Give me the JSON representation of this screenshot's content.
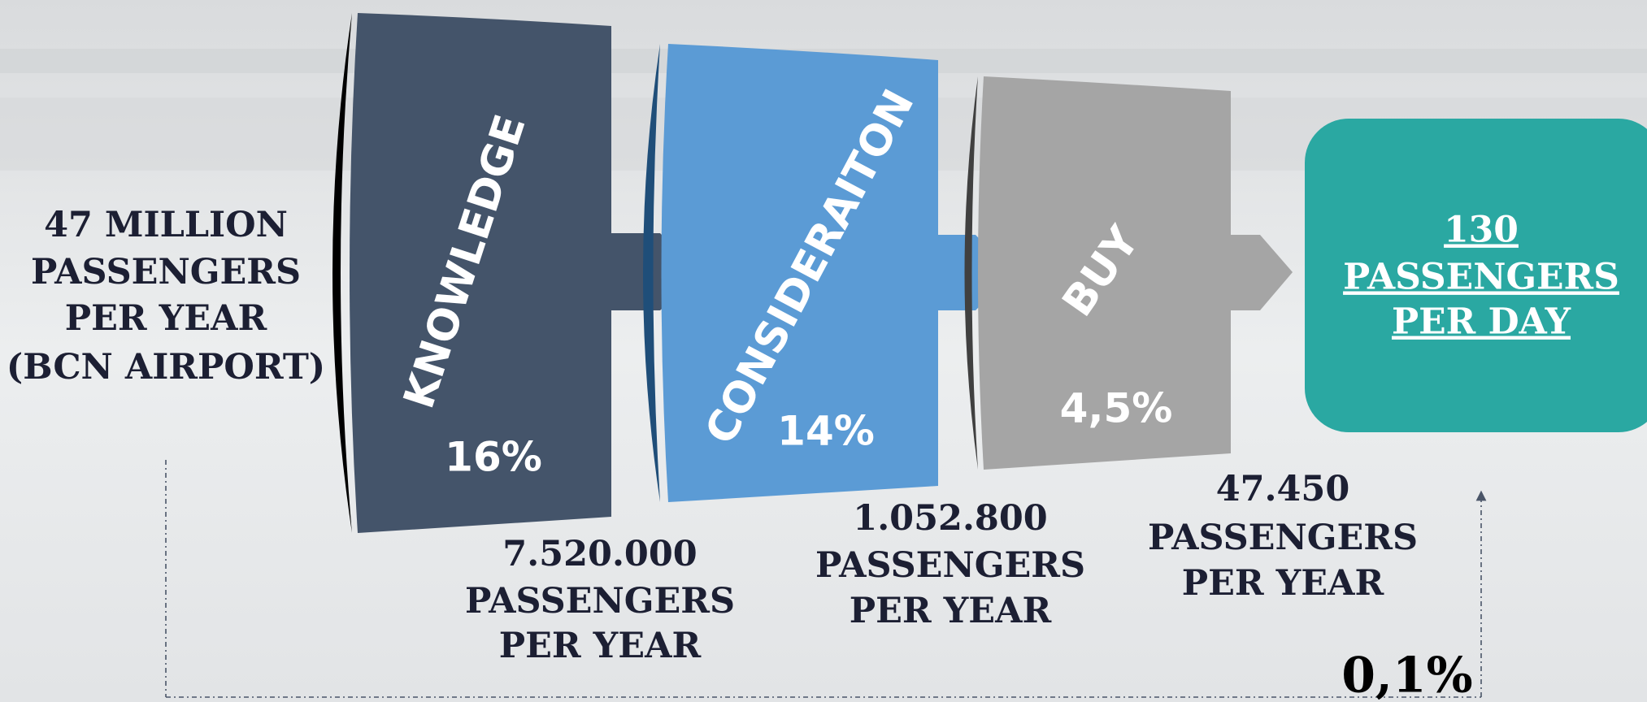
{
  "source": {
    "lines": [
      "47 MILLION",
      "PASSENGERS",
      "PER YEAR",
      "(BCN AIRPORT)"
    ]
  },
  "stages": [
    {
      "label": "KNOWLEDGE",
      "percent": "16%",
      "result": [
        "7.520.000",
        "PASSENGERS",
        "PER YEAR"
      ]
    },
    {
      "label": "CONSIDERAITON",
      "percent": "14%",
      "result": [
        "1.052.800",
        "PASSENGERS",
        "PER YEAR"
      ]
    },
    {
      "label": "BUY",
      "percent": "4,5%",
      "result": [
        "47.450",
        "PASSENGERS",
        "PER YEAR"
      ]
    }
  ],
  "outcome": {
    "lines": [
      "130",
      "PASSENGERS",
      "PER DAY"
    ]
  },
  "overall": "0,1%"
}
